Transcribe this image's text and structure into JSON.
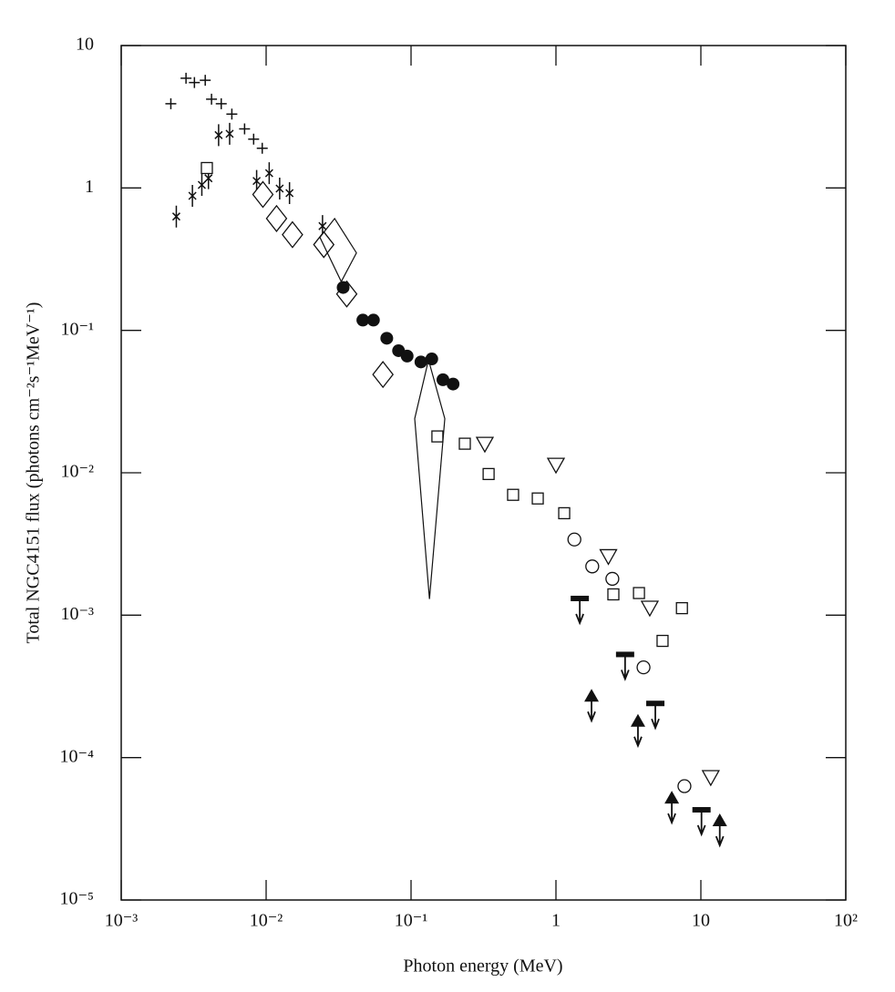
{
  "chart_data": {
    "type": "scatter",
    "x_label": "Photon energy (MeV)",
    "y_label": "Total NGC4151 flux (photons cm⁻²s⁻¹MeV⁻¹)",
    "log_x": true,
    "log_y": true,
    "xlim": [
      0.001,
      100
    ],
    "ylim": [
      1e-05,
      10
    ],
    "xticks": [
      {
        "value": 0.001,
        "label": "10⁻³"
      },
      {
        "value": 0.01,
        "label": "10⁻²"
      },
      {
        "value": 0.1,
        "label": "10⁻¹"
      },
      1,
      10,
      {
        "value": 100,
        "label": "10²"
      }
    ],
    "yticks": [
      {
        "value": 1e-05,
        "label": "10⁻⁵"
      },
      {
        "value": 0.0001,
        "label": "10⁻⁴"
      },
      {
        "value": 0.001,
        "label": "10⁻³"
      },
      {
        "value": 0.01,
        "label": "10⁻²"
      },
      {
        "value": 0.1,
        "label": "10⁻¹"
      },
      1,
      10
    ],
    "color": "#111111",
    "series": [
      {
        "marker": "plus",
        "x": [
          0.0022,
          0.0028,
          0.0032,
          0.0038,
          0.0042,
          0.0049,
          0.0058,
          0.0071,
          0.0082,
          0.0094
        ],
        "values": [
          3.9,
          5.9,
          5.5,
          5.7,
          4.2,
          3.9,
          3.3,
          2.6,
          2.2,
          1.9
        ]
      },
      {
        "marker": "cross",
        "x": [
          0.0024,
          0.0031,
          0.0036,
          0.004,
          0.0047,
          0.0056,
          0.0086,
          0.0105,
          0.0124,
          0.0145,
          0.0245
        ],
        "values": [
          0.63,
          0.88,
          1.05,
          1.17,
          2.35,
          2.4,
          1.12,
          1.27,
          0.99,
          0.92,
          0.54
        ]
      },
      {
        "marker": "diamond",
        "x": [
          0.0095,
          0.0118,
          0.0152,
          0.025,
          0.036,
          0.064
        ],
        "values": [
          0.9,
          0.61,
          0.47,
          0.4,
          0.18,
          0.049
        ]
      },
      {
        "marker": "filled-circle",
        "x": [
          0.034,
          0.0465,
          0.055,
          0.068,
          0.082,
          0.094,
          0.117,
          0.139,
          0.166,
          0.195
        ],
        "values": [
          0.2,
          0.118,
          0.118,
          0.088,
          0.072,
          0.066,
          0.06,
          0.063,
          0.045,
          0.042
        ]
      },
      {
        "marker": "square",
        "x": [
          0.0039,
          0.152,
          0.235,
          0.343,
          0.506,
          0.749,
          1.14,
          2.49,
          3.74,
          5.44,
          7.4
        ],
        "values": [
          1.38,
          0.018,
          0.016,
          0.0098,
          0.007,
          0.0066,
          0.0052,
          0.0014,
          0.00143,
          0.00066,
          0.00112
        ]
      },
      {
        "marker": "down-triangle",
        "x": [
          0.323,
          1.0,
          2.3,
          4.44,
          11.7
        ],
        "values": [
          0.016,
          0.0114,
          0.0026,
          0.00113,
          7.3e-05
        ]
      },
      {
        "marker": "circle",
        "x": [
          1.34,
          1.78,
          2.45,
          4.02,
          7.7
        ],
        "values": [
          0.0034,
          0.0022,
          0.0018,
          0.00043,
          6.3e-05
        ]
      },
      {
        "marker": "filled-up-triangle",
        "upper_limit": true,
        "x": [
          1.76,
          3.68,
          6.3,
          13.5
        ],
        "values": [
          0.00027,
          0.00018,
          5.2e-05,
          3.6e-05
        ]
      },
      {
        "marker": "filled-bar",
        "upper_limit": true,
        "x": [
          1.46,
          3.0,
          4.85,
          10.1
        ],
        "values": [
          0.00131,
          0.00053,
          0.00024,
          4.3e-05
        ]
      },
      {
        "marker": "polygon",
        "x": [
          0.0235,
          0.0297,
          0.042,
          0.033
        ],
        "values": [
          0.45,
          0.61,
          0.35,
          0.22
        ]
      },
      {
        "marker": "polygon",
        "x": [
          0.106,
          0.132,
          0.171,
          0.134
        ],
        "values": [
          0.024,
          0.062,
          0.024,
          0.0013
        ]
      }
    ]
  }
}
